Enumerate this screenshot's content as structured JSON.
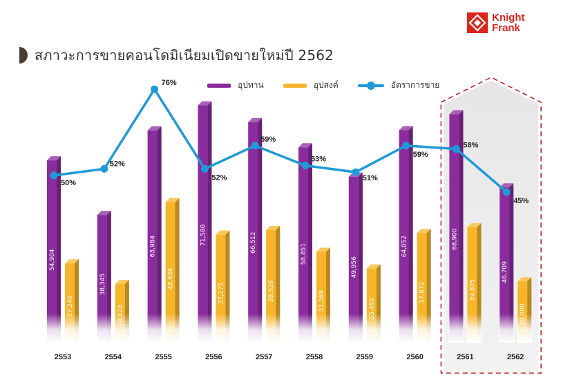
{
  "title": "สภาวะการขายคอนโดมิเนียมเปิดขายใหม่ปี 2562",
  "logo": {
    "line1": "Knight",
    "line2": "Frank"
  },
  "colors": {
    "supply": "#8b2c9e",
    "demand": "#f7b52a",
    "rate": "#1e9bd7",
    "brand": "#d9251c"
  },
  "chart_data": {
    "type": "bar",
    "categories": [
      "2553",
      "2554",
      "2555",
      "2556",
      "2557",
      "2558",
      "2559",
      "2560",
      "2561",
      "2562"
    ],
    "series": [
      {
        "name": "อุปทาน",
        "values": [
          54904,
          38345,
          63984,
          71580,
          66512,
          58851,
          49956,
          64052,
          68900,
          46709
        ],
        "labels": [
          "54,904",
          "38,345",
          "63,984",
          "71,580",
          "66,512",
          "58,851",
          "49,956",
          "64,052",
          "68,900",
          "46,709"
        ]
      },
      {
        "name": "อุปสงค์",
        "values": [
          27240,
          20028,
          48636,
          37275,
          38926,
          31269,
          25450,
          37872,
          39875,
          20990
        ],
        "labels": [
          "27,240",
          "20,028",
          "48,636",
          "37,275",
          "38,926",
          "31,269",
          "25,450",
          "37,872",
          "39,875",
          "20,990"
        ]
      },
      {
        "name": "อัตราการขาย",
        "type": "line",
        "values": [
          50,
          52,
          76,
          52,
          59,
          53,
          51,
          59,
          58,
          45
        ],
        "labels": [
          "50%",
          "52%",
          "76%",
          "52%",
          "59%",
          "53%",
          "51%",
          "59%",
          "58%",
          "45%"
        ]
      }
    ],
    "highlighted_categories": [
      "2561",
      "2562"
    ],
    "legend_position": "top"
  }
}
